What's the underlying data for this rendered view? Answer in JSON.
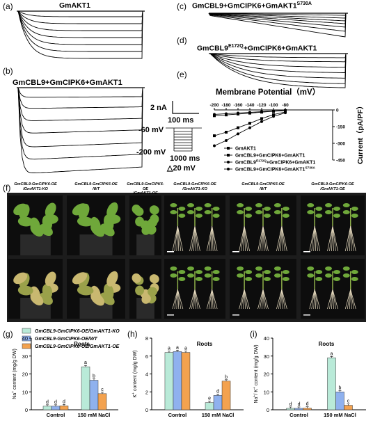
{
  "panels": {
    "a": {
      "label": "(a)",
      "title": "GmAKT1"
    },
    "b": {
      "label": "(b)",
      "title": "GmCBL9+GmCIPK6+GmAKT1"
    },
    "c": {
      "label": "(c)",
      "title": "GmCBL9+GmCIPK6+GmAKT1",
      "title_sup": "S730A"
    },
    "d": {
      "label": "(d)",
      "title_pre": "GmCBL9",
      "title_sup": "E172Q",
      "title_post": "+GmCIPK6+GmAKT1"
    },
    "e": {
      "label": "(e)"
    },
    "f": {
      "label": "(f)"
    },
    "g": {
      "label": "(g)"
    },
    "h": {
      "label": "(h)"
    },
    "i": {
      "label": "(i)"
    }
  },
  "scale": {
    "current": "2 nA",
    "time": "100 ms",
    "v_hold": "-60 mV",
    "v_min": "-200 mV",
    "duration": "1000 ms",
    "step": "△20 mV"
  },
  "chart_data": [
    {
      "type": "line",
      "panel": "e",
      "title": "Membrane Potential（mV）",
      "ylabel": "Current（pA/PF）",
      "x": [
        -200,
        -180,
        -160,
        -140,
        -120,
        -100,
        -80
      ],
      "xlim": [
        -200,
        0
      ],
      "ylim": [
        -450,
        0
      ],
      "yticks": [
        0,
        -150,
        -300,
        -450
      ],
      "series": [
        {
          "name": "GmAKT1",
          "values": [
            -52,
            -45,
            -37,
            -29,
            -20,
            -12,
            -6
          ]
        },
        {
          "name": "GmCBL9+GmCIPK6+GmAKT1",
          "values": [
            -232,
            -200,
            -160,
            -120,
            -78,
            -42,
            -18
          ]
        },
        {
          "name_pre": "GmCBL9",
          "name_sup": "E172Q",
          "name_post": "+GmCIPK6+GmAKT1",
          "values": [
            -40,
            -34,
            -28,
            -22,
            -15,
            -9,
            -4
          ]
        },
        {
          "name_pre": "GmCBL9+GmCIPK6+GmAKT1",
          "name_sup": "S730A",
          "values": [
            -322,
            -275,
            -215,
            -160,
            -105,
            -58,
            -26
          ]
        }
      ]
    },
    {
      "type": "bar",
      "panel": "g",
      "title": "Roots",
      "ylabel_sup": "+",
      "ylabel_pre": "Na",
      "ylabel_post": " content (mg/g DW)",
      "categories": [
        "Control",
        "150 mM NaCl"
      ],
      "ylim": [
        0,
        40
      ],
      "yticks": [
        0,
        10,
        20,
        30,
        40
      ],
      "series": [
        {
          "name": "GmCBL9-GmCIPK6-OE/GmAKT1-KO",
          "values": [
            2.0,
            24.0
          ],
          "letters": [
            "d",
            "a"
          ]
        },
        {
          "name": "GmCBL9-GmCIPK6-OE/WT",
          "values": [
            2.0,
            16.5
          ],
          "letters": [
            "d",
            "b"
          ]
        },
        {
          "name": "GmCBL9-GmCIPK6-OE/GmAKT1-OE",
          "values": [
            2.2,
            9.0
          ],
          "letters": [
            "d",
            "c"
          ]
        }
      ]
    },
    {
      "type": "bar",
      "panel": "h",
      "title": "Roots",
      "ylabel_sup": "+",
      "ylabel_pre": "K",
      "ylabel_post": " content (mg/g DW)",
      "categories": [
        "Control",
        "150 mM NaCl"
      ],
      "ylim": [
        0,
        8
      ],
      "yticks": [
        0,
        2,
        4,
        6,
        8
      ],
      "series": [
        {
          "name": "GmCBL9-GmCIPK6-OE/GmAKT1-KO",
          "values": [
            6.4,
            0.8
          ],
          "letters": [
            "a",
            "e"
          ]
        },
        {
          "name": "GmCBL9-GmCIPK6-OE/WT",
          "values": [
            6.5,
            1.6
          ],
          "letters": [
            "a",
            "d"
          ]
        },
        {
          "name": "GmCBL9-GmCIPK6-OE/GmAKT1-OE",
          "values": [
            6.4,
            3.2
          ],
          "letters": [
            "a",
            "b"
          ]
        }
      ]
    },
    {
      "type": "bar",
      "panel": "i",
      "title": "Roots",
      "ylabel_pre": "Na",
      "ylabel_sup": "+",
      "ylabel_mid": "/ K",
      "ylabel_sup2": "+",
      "ylabel_post": " content (mg/g DW)",
      "categories": [
        "Control",
        "150 mM NaCl"
      ],
      "ylim": [
        0,
        40
      ],
      "yticks": [
        0,
        10,
        20,
        30,
        40
      ],
      "series": [
        {
          "name": "GmCBL9-GmCIPK6-OE/GmAKT1-KO",
          "values": [
            0.8,
            29.0
          ],
          "letters": [
            "d",
            "a"
          ]
        },
        {
          "name": "GmCBL9-GmCIPK6-OE/WT",
          "values": [
            0.8,
            10.0
          ],
          "letters": [
            "d",
            "b"
          ]
        },
        {
          "name": "GmCBL9-GmCIPK6-OE/GmAKT1-OE",
          "values": [
            0.9,
            2.5
          ],
          "letters": [
            "d",
            "c"
          ]
        }
      ]
    }
  ],
  "photo_captions": [
    "GmCBL9-GmCIPK6-OE\n/GmAKT1-KO",
    "GmCBL9-GmCIPK6-OE\n/WT",
    "GmCBL9-GmCIPK6-OE\n/GmAKT1-OE",
    "GmCBL9-GmCIPK6-OE\n/GmAKT1-KO",
    "GmCBL9-GmCIPK6-OE\n/WT",
    "GmCBL9-GmCIPK6-OE\n/GmAKT1-OE"
  ],
  "colors": {
    "series1": "#b9ead8",
    "series2": "#8fb1ee",
    "series3": "#f3a24f",
    "photo_bg": "#0d0d0d",
    "leaf": "#6fa83a",
    "root": "#e8dcc0"
  }
}
